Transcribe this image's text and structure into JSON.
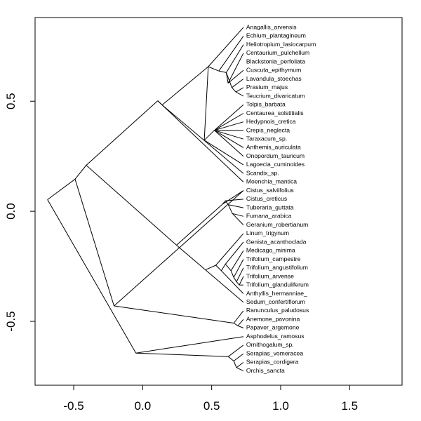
{
  "chart_data": {
    "type": "dendrogram",
    "title": "",
    "xlabel": "",
    "ylabel": "",
    "xlim": [
      -0.78,
      1.88
    ],
    "ylim": [
      -0.79,
      0.88
    ],
    "grid": false,
    "x_ticks": [
      {
        "value": -0.5,
        "label": "-0.5"
      },
      {
        "value": 0.0,
        "label": "0.0"
      },
      {
        "value": 0.5,
        "label": "0.5"
      },
      {
        "value": 1.0,
        "label": "1.0"
      },
      {
        "value": 1.5,
        "label": "1.5"
      }
    ],
    "y_ticks": [
      {
        "value": -0.5,
        "label": "-0.5"
      },
      {
        "value": 0.0,
        "label": "0.0"
      },
      {
        "value": 0.5,
        "label": "0.5"
      }
    ],
    "tip_x": 0.73,
    "tips": [
      {
        "label": "Anagallis_arvensis",
        "y": 0.835
      },
      {
        "label": "Echium_plantagineum",
        "y": 0.796
      },
      {
        "label": "Heliotropium_lasiocarpum",
        "y": 0.757
      },
      {
        "label": "Centaurium_pulchellum",
        "y": 0.718
      },
      {
        "label": "Blackstonia_perfoliata",
        "y": 0.679
      },
      {
        "label": "Cuscuta_epithymum",
        "y": 0.64
      },
      {
        "label": "Lavandula_stoechas",
        "y": 0.601
      },
      {
        "label": "Prasium_majus",
        "y": 0.562
      },
      {
        "label": "Teucrium_divaricatum",
        "y": 0.523
      },
      {
        "label": "Tolpis_barbata",
        "y": 0.484
      },
      {
        "label": "Centaurea_solstitialis",
        "y": 0.445
      },
      {
        "label": "Hedypnois_cretica",
        "y": 0.406
      },
      {
        "label": "Crepis_neglecta",
        "y": 0.367
      },
      {
        "label": "Taraxacum_sp.",
        "y": 0.328
      },
      {
        "label": "Anthemis_auriculata",
        "y": 0.289
      },
      {
        "label": "Onopordum_tauricum",
        "y": 0.25
      },
      {
        "label": "Lagoecia_cuminoides",
        "y": 0.211
      },
      {
        "label": "Scandix_sp.",
        "y": 0.172
      },
      {
        "label": "Moenchia_mantica",
        "y": 0.133
      },
      {
        "label": "Cistus_salviifolius",
        "y": 0.094
      },
      {
        "label": "Cistus_creticus",
        "y": 0.055
      },
      {
        "label": "Tuberaria_guttata",
        "y": 0.016
      },
      {
        "label": "Fumana_arabica",
        "y": -0.023
      },
      {
        "label": "Geranium_robertianum",
        "y": -0.062
      },
      {
        "label": "Linum_trigynum",
        "y": -0.101
      },
      {
        "label": "Genista_acanthoclada",
        "y": -0.14
      },
      {
        "label": "Medicago_minima",
        "y": -0.179
      },
      {
        "label": "Trifolium_campestre",
        "y": -0.218
      },
      {
        "label": "Trifolium_angustifolium",
        "y": -0.257
      },
      {
        "label": "Trifolium_arvense",
        "y": -0.296
      },
      {
        "label": "Trifolium_glanduliferum",
        "y": -0.335
      },
      {
        "label": "Anthyllis_hermanniae_",
        "y": -0.374
      },
      {
        "label": "Sedum_confertiflorum",
        "y": -0.413
      },
      {
        "label": "Ranunculus_paludosus",
        "y": -0.452
      },
      {
        "label": "Anemone_pavonina",
        "y": -0.491
      },
      {
        "label": "Papaver_argemone",
        "y": -0.53
      },
      {
        "label": "Asphodelus_ramosus",
        "y": -0.569
      },
      {
        "label": "Ornithogalum_sp.",
        "y": -0.608
      },
      {
        "label": "Serapias_vomeracea",
        "y": -0.647
      },
      {
        "label": "Serapias_cordigera",
        "y": -0.686
      },
      {
        "label": "Orchis_sancta",
        "y": -0.725
      }
    ],
    "branches": [
      [
        -0.69,
        0.053,
        -0.49,
        0.146
      ],
      [
        -0.69,
        0.053,
        -0.049,
        -0.644
      ],
      [
        -0.49,
        0.146,
        -0.409,
        0.209
      ],
      [
        -0.49,
        0.146,
        -0.208,
        -0.43
      ],
      [
        -0.409,
        0.209,
        0.109,
        0.502
      ],
      [
        -0.409,
        0.209,
        0.245,
        -0.154
      ],
      [
        0.109,
        0.502,
        0.141,
        0.483
      ],
      [
        0.109,
        0.502,
        0.73,
        0.133
      ],
      [
        0.141,
        0.483,
        0.475,
        0.657
      ],
      [
        0.141,
        0.483,
        0.73,
        0.172
      ],
      [
        0.475,
        0.657,
        0.73,
        0.835
      ],
      [
        0.475,
        0.657,
        0.552,
        0.637
      ],
      [
        0.552,
        0.637,
        0.73,
        0.796
      ],
      [
        0.552,
        0.637,
        0.606,
        0.63
      ],
      [
        0.606,
        0.63,
        0.73,
        0.757
      ],
      [
        0.606,
        0.63,
        0.619,
        0.582
      ],
      [
        0.619,
        0.582,
        0.73,
        0.718
      ],
      [
        0.619,
        0.582,
        0.73,
        0.64
      ],
      [
        0.606,
        0.63,
        0.646,
        0.562
      ],
      [
        0.646,
        0.562,
        0.73,
        0.601
      ],
      [
        0.646,
        0.562,
        0.676,
        0.542
      ],
      [
        0.676,
        0.542,
        0.73,
        0.562
      ],
      [
        0.676,
        0.542,
        0.73,
        0.523
      ],
      [
        0.475,
        0.657,
        0.446,
        0.323
      ],
      [
        0.446,
        0.323,
        0.73,
        0.211
      ],
      [
        0.446,
        0.323,
        0.52,
        0.368
      ],
      [
        0.52,
        0.368,
        0.73,
        0.484
      ],
      [
        0.52,
        0.368,
        0.73,
        0.445
      ],
      [
        0.52,
        0.368,
        0.73,
        0.406
      ],
      [
        0.52,
        0.368,
        0.73,
        0.367
      ],
      [
        0.52,
        0.368,
        0.73,
        0.328
      ],
      [
        0.52,
        0.368,
        0.73,
        0.289
      ],
      [
        0.52,
        0.368,
        0.73,
        0.25
      ],
      [
        0.245,
        -0.154,
        0.578,
        0.032
      ],
      [
        0.245,
        -0.154,
        0.455,
        -0.266
      ],
      [
        0.578,
        0.032,
        0.73,
        0.094
      ],
      [
        0.578,
        0.032,
        0.6,
        0.048
      ],
      [
        0.6,
        0.048,
        0.73,
        0.055
      ],
      [
        0.6,
        0.048,
        0.62,
        0.03
      ],
      [
        0.62,
        0.03,
        0.73,
        0.016
      ],
      [
        0.62,
        0.03,
        0.65,
        -0.01
      ],
      [
        0.65,
        -0.01,
        0.73,
        -0.023
      ],
      [
        0.65,
        -0.01,
        0.73,
        -0.062
      ],
      [
        0.455,
        -0.266,
        0.73,
        -0.413
      ],
      [
        0.455,
        -0.266,
        0.53,
        -0.245
      ],
      [
        0.53,
        -0.245,
        0.73,
        -0.101
      ],
      [
        0.53,
        -0.245,
        0.57,
        -0.27
      ],
      [
        0.57,
        -0.27,
        0.73,
        -0.374
      ],
      [
        0.57,
        -0.27,
        0.6,
        -0.24
      ],
      [
        0.6,
        -0.24,
        0.73,
        -0.14
      ],
      [
        0.6,
        -0.24,
        0.64,
        -0.27
      ],
      [
        0.64,
        -0.27,
        0.73,
        -0.179
      ],
      [
        0.64,
        -0.27,
        0.66,
        -0.3
      ],
      [
        0.66,
        -0.3,
        0.73,
        -0.218
      ],
      [
        0.66,
        -0.3,
        0.68,
        -0.32
      ],
      [
        0.68,
        -0.32,
        0.73,
        -0.257
      ],
      [
        0.68,
        -0.32,
        0.7,
        -0.335
      ],
      [
        0.7,
        -0.335,
        0.73,
        -0.296
      ],
      [
        0.7,
        -0.335,
        0.73,
        -0.335
      ],
      [
        -0.208,
        -0.43,
        0.73,
        0.094
      ],
      [
        -0.208,
        -0.43,
        0.66,
        -0.508
      ],
      [
        0.66,
        -0.508,
        0.73,
        -0.452
      ],
      [
        0.66,
        -0.508,
        0.69,
        -0.52
      ],
      [
        0.69,
        -0.52,
        0.73,
        -0.491
      ],
      [
        0.69,
        -0.52,
        0.73,
        -0.53
      ],
      [
        -0.049,
        -0.644,
        0.73,
        -0.569
      ],
      [
        -0.049,
        -0.644,
        0.62,
        -0.66
      ],
      [
        0.62,
        -0.66,
        0.73,
        -0.608
      ],
      [
        0.62,
        -0.66,
        0.66,
        -0.68
      ],
      [
        0.66,
        -0.68,
        0.73,
        -0.647
      ],
      [
        0.66,
        -0.68,
        0.68,
        -0.71
      ],
      [
        0.68,
        -0.71,
        0.73,
        -0.686
      ],
      [
        0.68,
        -0.71,
        0.73,
        -0.725
      ]
    ]
  }
}
